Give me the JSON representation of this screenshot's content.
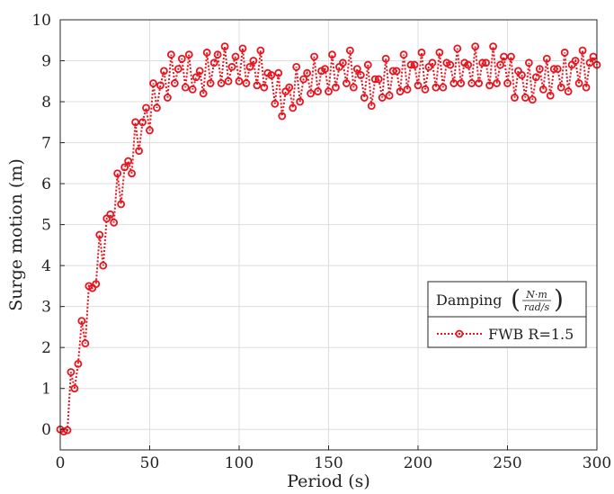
{
  "chart_data": {
    "type": "line",
    "xlabel": "Period (s)",
    "ylabel": "Surge motion (m)",
    "xlim": [
      0,
      300
    ],
    "ylim": [
      -0.5,
      10
    ],
    "xticks": [
      0,
      50,
      100,
      150,
      200,
      250,
      300
    ],
    "yticks": [
      0,
      1,
      2,
      3,
      4,
      5,
      6,
      7,
      8,
      9,
      10
    ],
    "grid": true,
    "legend_position": "bottom-right",
    "legend_title": "Damping",
    "legend_title_fraction_numerator": "N·m",
    "legend_title_fraction_denominator": "rad/s",
    "series": [
      {
        "name": "FWB R=1.5",
        "color": "#e8141e",
        "line_style": "dotted",
        "marker": "open-circle",
        "x": [
          0,
          2,
          4,
          6,
          8,
          10,
          12,
          14,
          16,
          18,
          20,
          22,
          24,
          26,
          28,
          30,
          32,
          34,
          36,
          38,
          40,
          42,
          44,
          46,
          48,
          50,
          52,
          54,
          56,
          58,
          60,
          62,
          64,
          66,
          68,
          70,
          72,
          74,
          76,
          78,
          80,
          82,
          84,
          86,
          88,
          90,
          92,
          94,
          96,
          98,
          100,
          102,
          104,
          106,
          108,
          110,
          112,
          114,
          116,
          118,
          120,
          122,
          124,
          126,
          128,
          130,
          132,
          134,
          136,
          138,
          140,
          142,
          144,
          146,
          148,
          150,
          152,
          154,
          156,
          158,
          160,
          162,
          164,
          166,
          168,
          170,
          172,
          174,
          176,
          178,
          180,
          182,
          184,
          186,
          188,
          190,
          192,
          194,
          196,
          198,
          200,
          202,
          204,
          206,
          208,
          210,
          212,
          214,
          216,
          218,
          220,
          222,
          224,
          226,
          228,
          230,
          232,
          234,
          236,
          238,
          240,
          242,
          244,
          246,
          248,
          250,
          252,
          254,
          256,
          258,
          260,
          262,
          264,
          266,
          268,
          270,
          272,
          274,
          276,
          278,
          280,
          282,
          284,
          286,
          288,
          290,
          292,
          294,
          296,
          298,
          300
        ],
        "y": [
          0.0,
          -0.05,
          -0.02,
          1.4,
          1.0,
          1.6,
          2.65,
          2.1,
          3.5,
          3.45,
          3.55,
          4.75,
          4.0,
          5.15,
          5.25,
          5.05,
          6.25,
          5.5,
          6.4,
          6.55,
          6.25,
          7.5,
          6.8,
          7.5,
          7.85,
          7.3,
          8.45,
          7.85,
          8.4,
          8.75,
          8.1,
          9.15,
          8.45,
          8.8,
          9.05,
          8.35,
          9.15,
          8.3,
          8.6,
          8.75,
          8.2,
          9.2,
          8.45,
          8.95,
          9.15,
          8.45,
          9.35,
          8.5,
          8.85,
          9.1,
          8.5,
          9.3,
          8.45,
          8.85,
          9.0,
          8.4,
          9.25,
          8.35,
          8.7,
          8.65,
          7.95,
          8.7,
          7.65,
          8.25,
          8.35,
          7.85,
          8.85,
          8.0,
          8.55,
          8.7,
          8.2,
          9.1,
          8.25,
          8.75,
          8.8,
          8.25,
          9.15,
          8.35,
          8.85,
          8.95,
          8.45,
          9.25,
          8.35,
          8.8,
          8.65,
          8.1,
          8.9,
          7.9,
          8.55,
          8.55,
          8.1,
          9.05,
          8.15,
          8.75,
          8.75,
          8.25,
          9.15,
          8.3,
          8.9,
          8.9,
          8.4,
          9.2,
          8.3,
          8.85,
          8.95,
          8.35,
          9.2,
          8.35,
          8.95,
          8.9,
          8.45,
          9.3,
          8.45,
          8.95,
          8.9,
          8.45,
          9.35,
          8.45,
          8.95,
          8.95,
          8.4,
          9.35,
          8.45,
          8.9,
          9.1,
          8.45,
          9.1,
          8.1,
          8.75,
          8.65,
          8.1,
          8.95,
          8.05,
          8.6,
          8.8,
          8.3,
          9.05,
          8.15,
          8.8,
          8.8,
          8.35,
          9.2,
          8.25,
          8.9,
          9.0,
          8.45,
          9.25,
          8.35,
          8.95,
          9.1,
          8.9
        ]
      }
    ]
  }
}
